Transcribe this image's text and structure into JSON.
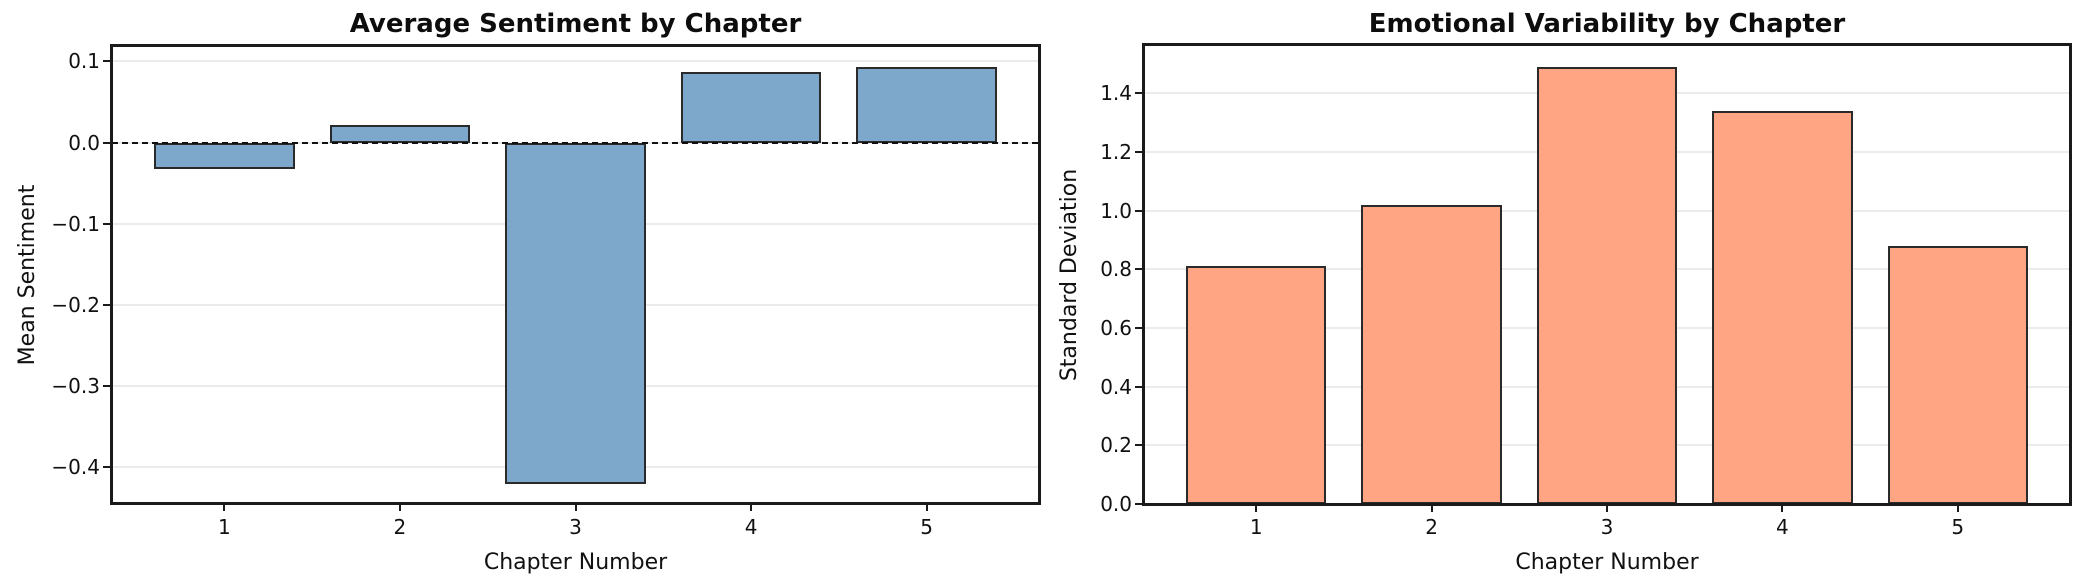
{
  "figure": {
    "background": "#ffffff"
  },
  "chart_data": [
    {
      "type": "bar",
      "title": "Average Sentiment by Chapter",
      "xlabel": "Chapter Number",
      "ylabel": "Mean Sentiment",
      "categories": [
        "1",
        "2",
        "3",
        "4",
        "5"
      ],
      "values": [
        -0.033,
        0.022,
        -0.42,
        0.087,
        0.093
      ],
      "xlim": [
        0.36,
        5.64
      ],
      "ylim": [
        -0.444,
        0.119
      ],
      "yticks": [
        0.1,
        0.0,
        -0.1,
        -0.2,
        -0.3,
        -0.4
      ],
      "ytick_labels": [
        "0.1",
        "0.0",
        "−0.1",
        "−0.2",
        "−0.3",
        "−0.4"
      ],
      "bar_width_units": 0.8,
      "grid": "horizontal",
      "zero_line_dashed": true,
      "legend": "none",
      "colors": {
        "bar_fill": "#7EA8CB",
        "bar_edge": "#2A2A2A",
        "grid": "#EBEBEB",
        "spine": "#1A1A1A",
        "zero_line": "#111111",
        "text": "#111111"
      }
    },
    {
      "type": "bar",
      "title": "Emotional Variability by Chapter",
      "xlabel": "Chapter Number",
      "ylabel": "Standard Deviation",
      "categories": [
        "1",
        "2",
        "3",
        "4",
        "5"
      ],
      "values": [
        0.81,
        1.02,
        1.49,
        1.34,
        0.88
      ],
      "xlim": [
        0.36,
        5.64
      ],
      "ylim": [
        0,
        1.565
      ],
      "yticks": [
        0.0,
        0.2,
        0.4,
        0.6,
        0.8,
        1.0,
        1.2,
        1.4
      ],
      "ytick_labels": [
        "0.0",
        "0.2",
        "0.4",
        "0.6",
        "0.8",
        "1.0",
        "1.2",
        "1.4"
      ],
      "bar_width_units": 0.8,
      "grid": "horizontal",
      "zero_line_dashed": false,
      "legend": "none",
      "colors": {
        "bar_fill": "#FFA584",
        "bar_edge": "#2A2A2A",
        "grid": "#EBEBEB",
        "spine": "#1A1A1A",
        "text": "#111111"
      }
    }
  ]
}
